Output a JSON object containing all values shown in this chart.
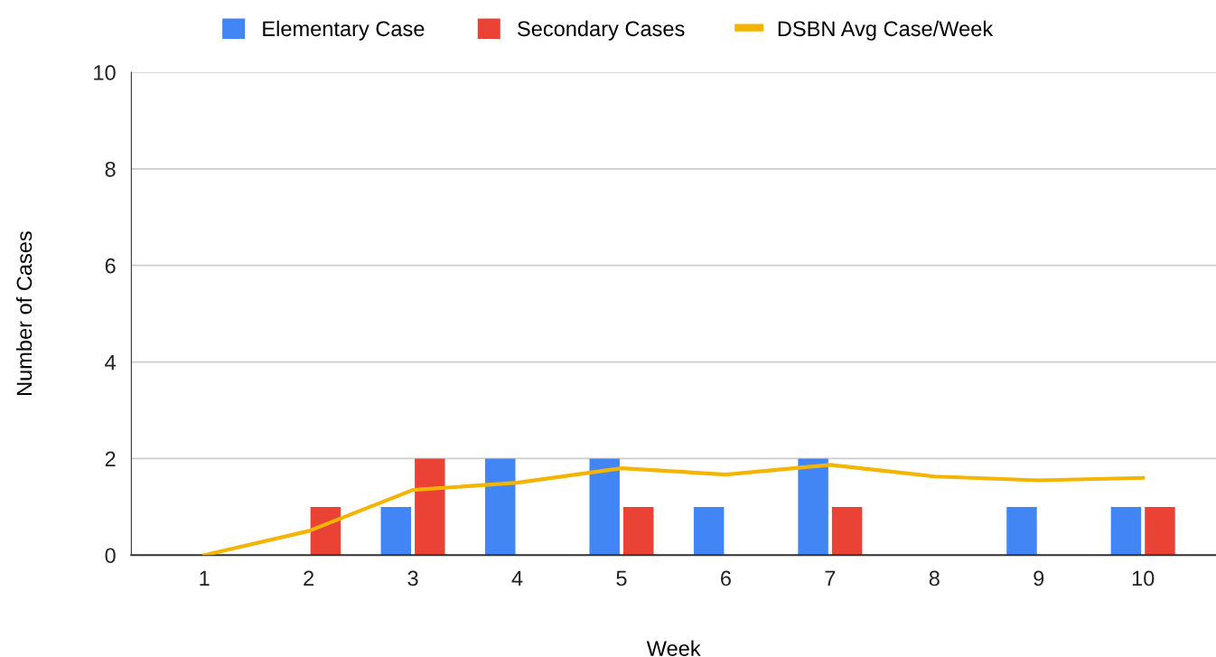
{
  "chart_data": {
    "type": "bar",
    "xlabel": "Week",
    "ylabel": "Number of Cases",
    "categories": [
      "1",
      "2",
      "3",
      "4",
      "5",
      "6",
      "7",
      "8",
      "9",
      "10"
    ],
    "series": [
      {
        "name": "Elementary Case",
        "color": "#4285f4",
        "values": [
          0,
          0,
          1,
          2,
          2,
          1,
          2,
          0,
          1,
          1
        ]
      },
      {
        "name": "Secondary Cases",
        "color": "#ea4335",
        "values": [
          0,
          1,
          2,
          0,
          1,
          0,
          1,
          0,
          0,
          1
        ]
      },
      {
        "name": "DSBN Avg Case/Week",
        "color": "#f4b400",
        "type": "line",
        "values": [
          0,
          0.5,
          1.35,
          1.5,
          1.8,
          1.67,
          1.87,
          1.63,
          1.55,
          1.6
        ]
      }
    ],
    "ylim": [
      0,
      10
    ],
    "yticks": [
      0,
      2,
      4,
      6,
      8,
      10
    ],
    "grid": "y",
    "legend": "top",
    "marker": "none",
    "line_style": "solid"
  }
}
